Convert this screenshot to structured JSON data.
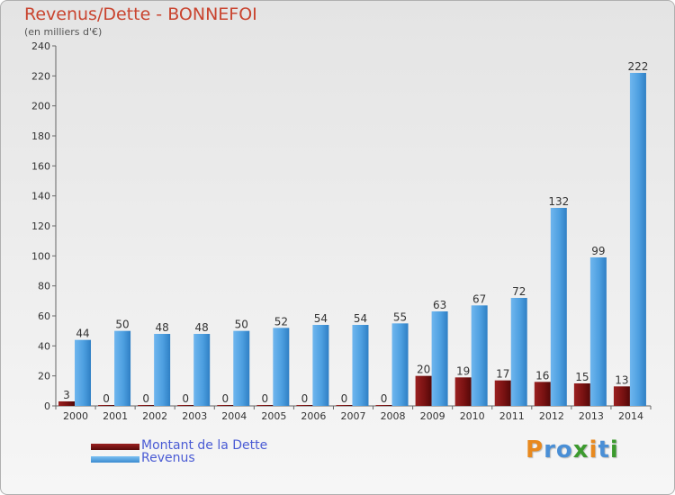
{
  "header": {
    "title": "Revenus/Dette - BONNEFOI",
    "subtitle": "(en milliers d'€)"
  },
  "legend": {
    "dette_label": "Montant de la Dette",
    "revenus_label": "Revenus"
  },
  "logo": {
    "letters": [
      "P",
      "r",
      "o",
      "x",
      "i",
      "t",
      "i"
    ]
  },
  "colors": {
    "dette": "#7a1212",
    "revenus": "#4fa0e2",
    "legend_text": "#4a5bd4",
    "title": "#c9442f",
    "logo": [
      "#e8891e",
      "#4a8fd6",
      "#4a8fd6",
      "#3c9a2e",
      "#e8891e",
      "#4a8fd6",
      "#3c9a2e"
    ]
  },
  "chart_data": {
    "type": "bar",
    "title": "Revenus/Dette - BONNEFOI",
    "subtitle": "(en milliers d'€)",
    "xlabel": "",
    "ylabel": "",
    "ylim": [
      0,
      240
    ],
    "yticks": [
      0,
      20,
      40,
      60,
      80,
      100,
      120,
      140,
      160,
      180,
      200,
      220,
      240
    ],
    "grid": false,
    "legend_position": "bottom-left",
    "categories": [
      "2000",
      "2001",
      "2002",
      "2003",
      "2004",
      "2005",
      "2006",
      "2007",
      "2008",
      "2009",
      "2010",
      "2011",
      "2012",
      "2013",
      "2014"
    ],
    "series": [
      {
        "name": "Montant de la Dette",
        "values": [
          3,
          0,
          0,
          0,
          0,
          0,
          0,
          0,
          0,
          20,
          19,
          17,
          16,
          15,
          13
        ]
      },
      {
        "name": "Revenus",
        "values": [
          44,
          50,
          48,
          48,
          50,
          52,
          54,
          54,
          55,
          63,
          67,
          72,
          132,
          99,
          222
        ]
      }
    ]
  }
}
